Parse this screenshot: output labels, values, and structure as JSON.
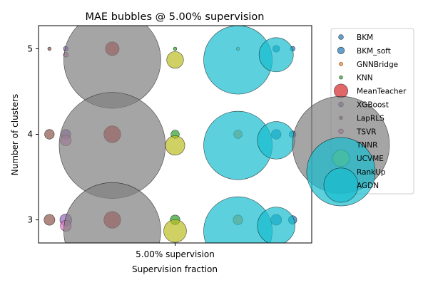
{
  "chart_data": {
    "type": "scatter",
    "title": "MAE bubbles @ 5.00% supervision",
    "xlabel": "Supervision fraction",
    "ylabel": "Number of clusters",
    "x_categories": [
      "5.00% supervision"
    ],
    "y_ticks": [
      3,
      4,
      5
    ],
    "ylim": [
      2.73,
      5.27
    ],
    "xlim": [
      -0.5,
      0.5
    ],
    "legend_position": "upper right, outside",
    "series": [
      {
        "name": "BKM",
        "color": "#1f77b4",
        "points": [
          {
            "x": 0.43,
            "y": 5,
            "size": 1
          },
          {
            "x": 0.43,
            "y": 4,
            "size": 2
          },
          {
            "x": 0.43,
            "y": 3,
            "size": 3
          }
        ]
      },
      {
        "name": "BKM_soft",
        "color": "#1f77b4",
        "points": [
          {
            "x": 0.37,
            "y": 5,
            "size": 2
          },
          {
            "x": 0.37,
            "y": 4,
            "size": 4
          },
          {
            "x": 0.37,
            "y": 3,
            "size": 5
          }
        ]
      },
      {
        "name": "GNNBridge",
        "color": "#ff7f0e",
        "points": [
          {
            "x": 0.23,
            "y": 5,
            "size": 0.5
          },
          {
            "x": 0.23,
            "y": 4,
            "size": 3
          },
          {
            "x": 0.23,
            "y": 3,
            "size": 4
          }
        ]
      },
      {
        "name": "KNN",
        "color": "#2ca02c",
        "points": [
          {
            "x": 0.0,
            "y": 5,
            "size": 0.5
          },
          {
            "x": 0.0,
            "y": 4,
            "size": 3
          },
          {
            "x": 0.0,
            "y": 3,
            "size": 4
          }
        ]
      },
      {
        "name": "MeanTeacher",
        "color": "#d62728",
        "points": [
          {
            "x": -0.23,
            "y": 5,
            "size": 8
          },
          {
            "x": -0.23,
            "y": 4,
            "size": 12
          },
          {
            "x": -0.23,
            "y": 3,
            "size": 12
          }
        ]
      },
      {
        "name": "XGBoost",
        "color": "#9467bd",
        "points": [
          {
            "x": -0.4,
            "y": 5,
            "size": 1
          },
          {
            "x": -0.4,
            "y": 4,
            "size": 4
          },
          {
            "x": -0.4,
            "y": 3,
            "size": 6
          }
        ]
      },
      {
        "name": "LapRLS",
        "color": "#8c564b",
        "points": [
          {
            "x": -0.46,
            "y": 5,
            "size": 0.5
          },
          {
            "x": -0.46,
            "y": 4,
            "size": 4
          },
          {
            "x": -0.46,
            "y": 3,
            "size": 5
          }
        ]
      },
      {
        "name": "TSVR",
        "color": "#e377c2",
        "points": [
          {
            "x": -0.4,
            "y": 4.93,
            "size": 1
          },
          {
            "x": -0.4,
            "y": 3.93,
            "size": 5
          },
          {
            "x": -0.4,
            "y": 2.93,
            "size": 5
          }
        ]
      },
      {
        "name": "TNNR",
        "color": "#7f7f7f",
        "points": [
          {
            "x": -0.23,
            "y": 4.87,
            "size": 400
          },
          {
            "x": -0.23,
            "y": 3.87,
            "size": 480
          },
          {
            "x": -0.23,
            "y": 2.87,
            "size": 400
          }
        ]
      },
      {
        "name": "UCVME",
        "color": "#bcbd22",
        "points": [
          {
            "x": 0.0,
            "y": 4.87,
            "size": 12
          },
          {
            "x": 0.0,
            "y": 3.87,
            "size": 16
          },
          {
            "x": 0.0,
            "y": 2.87,
            "size": 22
          }
        ]
      },
      {
        "name": "RankUp",
        "color": "#17becf",
        "points": [
          {
            "x": 0.23,
            "y": 4.87,
            "size": 200
          },
          {
            "x": 0.23,
            "y": 3.87,
            "size": 200
          },
          {
            "x": 0.23,
            "y": 2.87,
            "size": 200
          }
        ]
      },
      {
        "name": "AGDN",
        "color": "#17becf",
        "points": [
          {
            "x": 0.37,
            "y": 4.93,
            "size": 50
          },
          {
            "x": 0.37,
            "y": 3.93,
            "size": 60
          },
          {
            "x": 0.37,
            "y": 2.93,
            "size": 60
          }
        ]
      }
    ]
  }
}
